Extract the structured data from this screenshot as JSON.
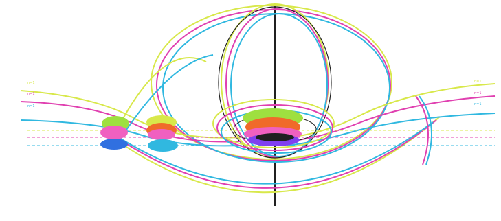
{
  "diagram": {
    "colors": {
      "yellow": "#d8e84a",
      "magenta": "#e040b0",
      "cyan": "#30b8e0",
      "black": "#202020",
      "orange": "#f06a2a",
      "green": "#9ee040",
      "pink": "#f060c0",
      "blue": "#3070e0",
      "purple": "#8040f0"
    },
    "labels": {
      "yellow_upper_left": "n=1",
      "magenta_upper_left": "n=1",
      "cyan_upper_left": "n=1",
      "yellow_upper_right": "n=1",
      "magenta_upper_right": "n=1",
      "cyan_upper_right": "n=1"
    }
  }
}
